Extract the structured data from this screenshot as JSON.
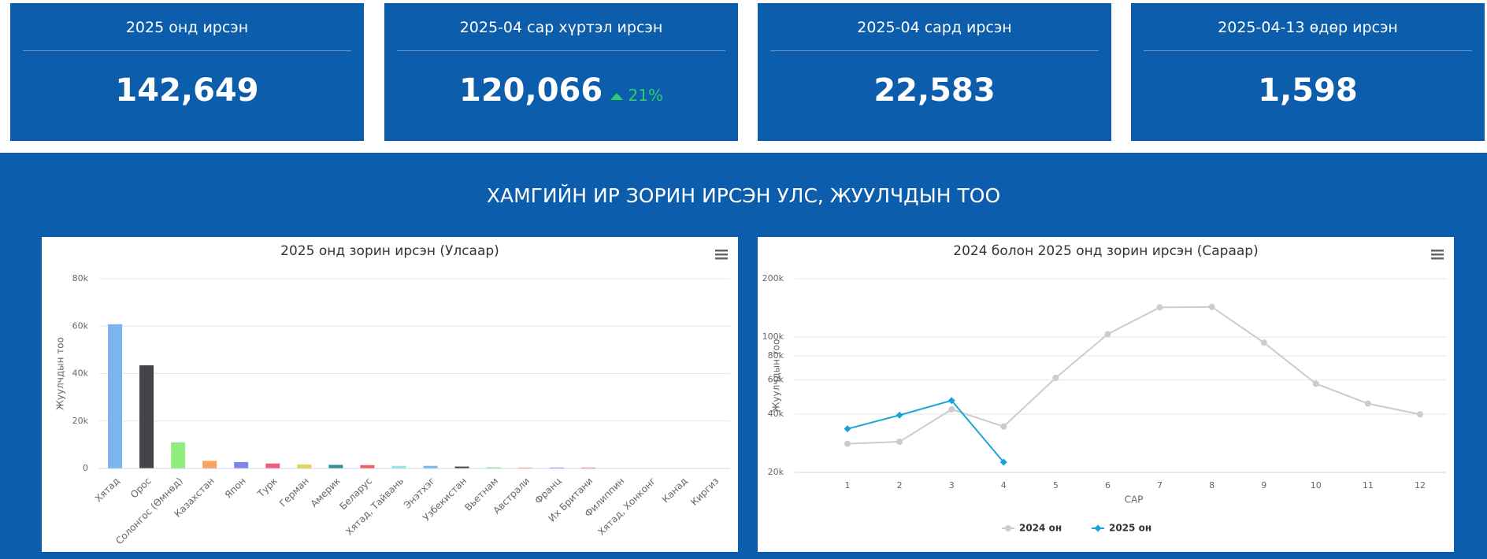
{
  "cards": [
    {
      "title": "2025 онд ирсэн",
      "value": "142,649"
    },
    {
      "title": "2025-04 сар хүртэл ирсэн",
      "value": "120,066",
      "change": "21%"
    },
    {
      "title": "2025-04 сард ирсэн",
      "value": "22,583"
    },
    {
      "title": "2025-04-13 өдөр ирсэн",
      "value": "1,598"
    }
  ],
  "section_title": "ХАМГИЙН ИР ЗОРИН ИРСЭН УЛС, ЖУУЛЧДЫН ТОО",
  "chart_data": [
    {
      "type": "bar",
      "title": "2025 онд зорин ирсэн (Улсаар)",
      "ylabel": "Жуулчдын тоо",
      "categories": [
        "Хятад",
        "Орос",
        "Солонгос (Өмнөд)",
        "Казахстан",
        "Япон",
        "Турк",
        "Герман",
        "Америк",
        "Беларус",
        "Хятад, Тайвань",
        "Энэтхэг",
        "Узбекистан",
        "Вьетнам",
        "Австрали",
        "Франц",
        "Их Британи",
        "Филиппин",
        "Хятад, Хонконг",
        "Канад",
        "Киргиз"
      ],
      "values": [
        60800,
        43500,
        11000,
        3200,
        2700,
        2100,
        1700,
        1500,
        1400,
        1100,
        1100,
        800,
        500,
        400,
        400,
        400,
        100,
        100,
        100,
        100
      ],
      "colors": [
        "#7cb5ec",
        "#434348",
        "#90ed7d",
        "#f7a35c",
        "#8085e9",
        "#f15c80",
        "#e4d354",
        "#2b908f",
        "#f45b5b",
        "#91e8e1",
        "#7cb5ec",
        "#434348",
        "#90ed7d",
        "#f7a35c",
        "#8085e9",
        "#f15c80",
        "#e4d354",
        "#2b908f",
        "#f45b5b",
        "#91e8e1"
      ],
      "ylim": [
        0,
        80000
      ],
      "yticks": [
        0,
        {
          "value": 20000,
          "label": "20k"
        },
        {
          "value": 40000,
          "label": "40k"
        },
        {
          "value": 60000,
          "label": "60k"
        },
        {
          "value": 80000,
          "label": "80k"
        }
      ],
      "grid": true
    },
    {
      "type": "line",
      "title": "2024 болон 2025 онд зорин ирсэн (Сараар)",
      "ylabel": "Жуулчдын тоо",
      "xlabel": "САР",
      "x": [
        1,
        2,
        3,
        4,
        5,
        6,
        7,
        8,
        9,
        10,
        11,
        12
      ],
      "series": [
        {
          "name": "2024 он",
          "color": "#cccccc",
          "marker": "circle",
          "values": [
            28100,
            28800,
            42300,
            34500,
            61500,
            103500,
            142300,
            143000,
            93500,
            57400,
            45300,
            39900
          ]
        },
        {
          "name": "2025 он",
          "color": "#1aa3d9",
          "marker": "diamond",
          "values": [
            33566,
            39500,
            47000,
            22583,
            null,
            null,
            null,
            null,
            null,
            null,
            null,
            null
          ]
        }
      ],
      "log_y": true,
      "ylim": [
        20000,
        200000
      ],
      "yticks": [
        {
          "value": 20000,
          "label": "20k"
        },
        {
          "value": 40000,
          "label": "40k"
        },
        {
          "value": 60000,
          "label": "60k"
        },
        {
          "value": 80000,
          "label": "80k"
        },
        {
          "value": 100000,
          "label": "100k"
        },
        {
          "value": 200000,
          "label": "200k"
        }
      ],
      "grid": true,
      "legend": "bottom"
    }
  ]
}
